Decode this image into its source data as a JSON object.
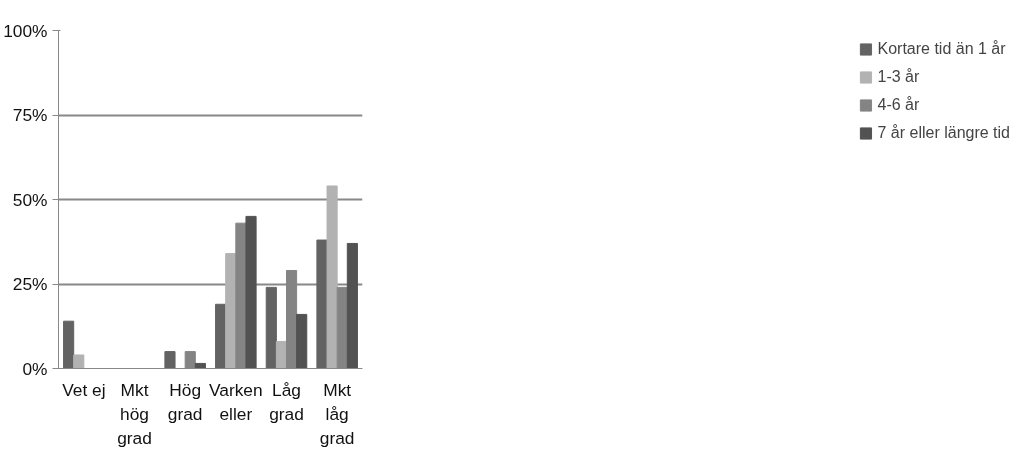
{
  "chart_data": {
    "type": "bar",
    "categories": [
      "Vet ej",
      "Mkt\nhög\ngrad",
      "Hög\ngrad",
      "Varken\neller",
      "Låg\ngrad",
      "Mkt\nlåg\ngrad"
    ],
    "series": [
      {
        "name": "Kortare tid än 1 år",
        "color": "#636363",
        "values": [
          14,
          0,
          5,
          19,
          24,
          38
        ]
      },
      {
        "name": "1-3 år",
        "color": "#b2b2b2",
        "values": [
          4,
          0,
          0,
          34,
          8,
          54
        ]
      },
      {
        "name": "4-6 år",
        "color": "#848484",
        "values": [
          0,
          0,
          5,
          43,
          29,
          24
        ]
      },
      {
        "name": "7 år eller längre tid",
        "color": "#525252",
        "values": [
          0,
          0,
          1.5,
          45,
          16,
          37
        ]
      }
    ],
    "ylim": [
      0,
      100
    ],
    "yticks": [
      {
        "value": 0,
        "label": "0%"
      },
      {
        "value": 25,
        "label": "25%"
      },
      {
        "value": 50,
        "label": "50%"
      },
      {
        "value": 75,
        "label": "75%"
      },
      {
        "value": 100,
        "label": "100%"
      }
    ],
    "grid": "y",
    "legend": "right"
  }
}
